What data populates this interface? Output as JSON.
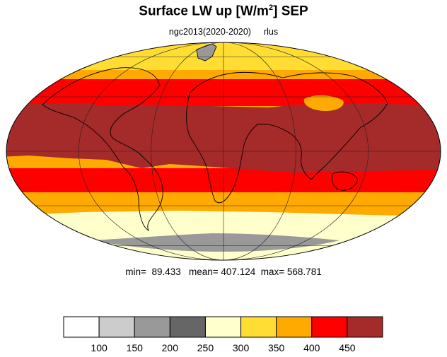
{
  "title": {
    "main": "Surface LW up [W/m",
    "sup": "2",
    "tail": "]  SEP"
  },
  "subtitle": {
    "run": "ngc2013(2020-2020)",
    "variable": "rlus"
  },
  "stats": {
    "min_label": "min=",
    "min": "89.433",
    "mean_label": "mean=",
    "mean": "407.124",
    "max_label": "max=",
    "max": "568.781"
  },
  "colorbar": {
    "levels": [
      100,
      150,
      200,
      250,
      300,
      350,
      400,
      450
    ],
    "tick_labels": [
      "100",
      "150",
      "200",
      "250",
      "300",
      "350",
      "400",
      "450"
    ],
    "colors": [
      "#ffffff",
      "#cccccc",
      "#999999",
      "#666666",
      "#ffffcc",
      "#ffdd33",
      "#ffaa00",
      "#ff0000",
      "#a52a2a"
    ]
  },
  "map": {
    "projection": "mollweide",
    "colors": {
      "band_poleward": "#ffaa00",
      "band_mid": "#ff0000",
      "tropics": "#a52a2a",
      "north_cap": "#ffdd33",
      "south_rim": "#ffffcc",
      "antarctica": "#999999",
      "greenland": "#999999",
      "coast": "#000000",
      "grid": "#222222"
    }
  }
}
